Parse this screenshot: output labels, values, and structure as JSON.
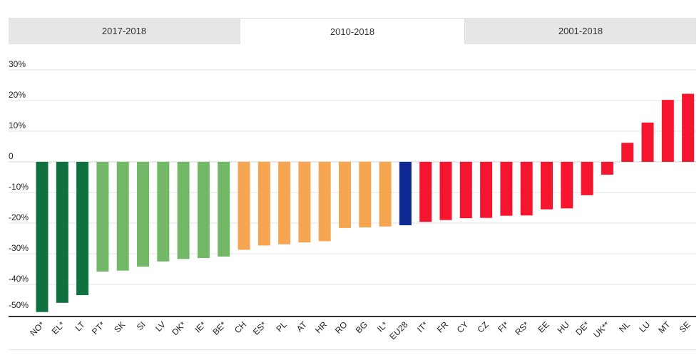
{
  "tabs": [
    {
      "label": "2017-2018",
      "active": false
    },
    {
      "label": "2010-2018",
      "active": true
    },
    {
      "label": "2001-2018",
      "active": false
    }
  ],
  "colors": {
    "dark_green": "#0f7040",
    "light_green": "#72b867",
    "orange": "#f6a550",
    "blue": "#0e2a92",
    "red": "#f5152e"
  },
  "chart_data": {
    "type": "bar",
    "title": "",
    "xlabel": "",
    "ylabel": "",
    "ylim": [
      -50,
      30
    ],
    "yticks": [
      {
        "value": 30,
        "label": "30%"
      },
      {
        "value": 20,
        "label": "20%"
      },
      {
        "value": 10,
        "label": "10%"
      },
      {
        "value": 0,
        "label": "0"
      },
      {
        "value": -10,
        "label": "-10%"
      },
      {
        "value": -20,
        "label": "-20%"
      },
      {
        "value": -30,
        "label": "-30%"
      },
      {
        "value": -40,
        "label": "-40%"
      },
      {
        "value": -50,
        "label": "-50%"
      }
    ],
    "grid": true,
    "categories": [
      "NO*",
      "EL*",
      "LT",
      "PT*",
      "SK",
      "SI",
      "LV",
      "DK*",
      "IE*",
      "BE*",
      "CH",
      "ES*",
      "PL",
      "AT",
      "HR",
      "RO",
      "BG",
      "IL*",
      "EU28",
      "IT*",
      "FR",
      "CY",
      "CZ",
      "FI*",
      "RS*",
      "EE",
      "HU",
      "DE*",
      "UK**",
      "NL",
      "LU",
      "MT",
      "SE"
    ],
    "values": [
      -49,
      -46,
      -43.5,
      -35.8,
      -35.5,
      -34.2,
      -32.5,
      -31.7,
      -31.4,
      -30.9,
      -28.7,
      -27.3,
      -26.9,
      -26.3,
      -25.9,
      -21.6,
      -21.4,
      -21.1,
      -20.7,
      -19.6,
      -19,
      -18.4,
      -18.3,
      -17.6,
      -17.5,
      -15.5,
      -15.2,
      -10.9,
      -4.2,
      6.2,
      12.8,
      20.2,
      22.2
    ],
    "colors": [
      "dark_green",
      "dark_green",
      "dark_green",
      "light_green",
      "light_green",
      "light_green",
      "light_green",
      "light_green",
      "light_green",
      "light_green",
      "orange",
      "orange",
      "orange",
      "orange",
      "orange",
      "orange",
      "orange",
      "orange",
      "blue",
      "red",
      "red",
      "red",
      "red",
      "red",
      "red",
      "red",
      "red",
      "red",
      "red",
      "red",
      "red",
      "red",
      "red"
    ]
  }
}
